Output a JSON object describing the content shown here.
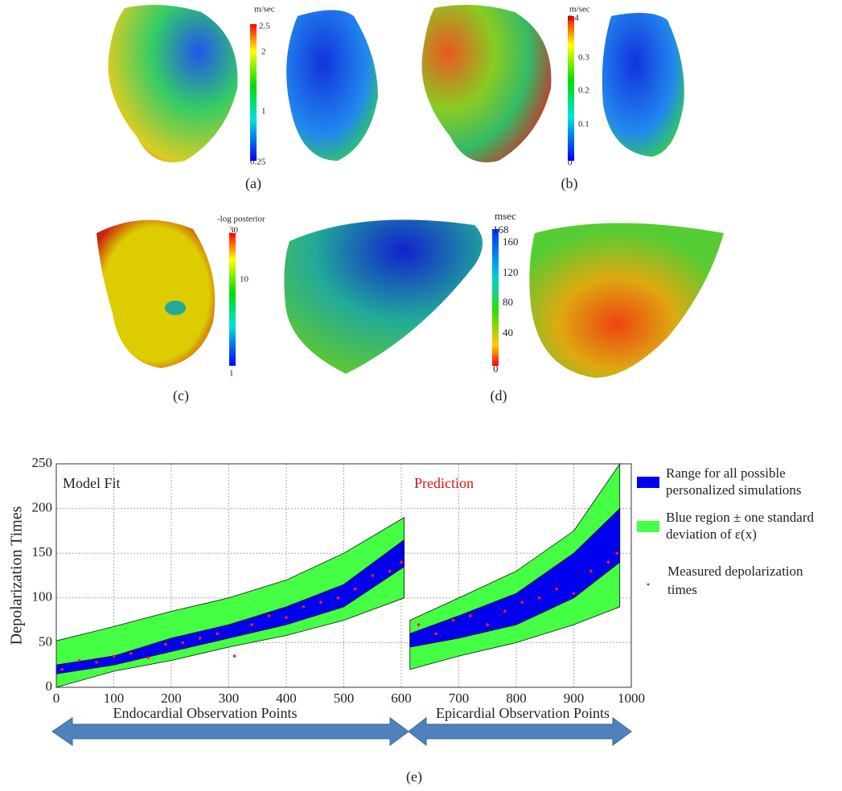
{
  "panels": {
    "a": {
      "label": "(a)",
      "unit": "m/sec",
      "ticks": [
        "2.5",
        "2",
        "1",
        "0.25"
      ]
    },
    "b": {
      "label": "(b)",
      "unit": "m/sec",
      "ticks": [
        "0.4",
        "0.3",
        "0.2",
        "0.1",
        "0"
      ]
    },
    "c": {
      "label": "(c)",
      "unit": "-log posterior",
      "ticks": [
        "30",
        "10",
        "1"
      ]
    },
    "d": {
      "label": "(d)",
      "unit": "msec",
      "ticks": [
        "168",
        "160",
        "120",
        "80",
        "40",
        "0"
      ]
    },
    "e": {
      "label": "(e)"
    }
  },
  "chart_data": {
    "type": "band",
    "ylabel": "Depolarization Times",
    "annotations": [
      "Model Fit",
      "Prediction"
    ],
    "segment_labels": [
      "Endocardial Observation Points",
      "Epicardial Observation Points"
    ],
    "xlim": [
      0,
      1000
    ],
    "ylim": [
      0,
      250
    ],
    "xticks": [
      0,
      100,
      200,
      300,
      400,
      500,
      600,
      700,
      800,
      900,
      1000
    ],
    "yticks": [
      0,
      50,
      100,
      150,
      200,
      250
    ],
    "grid": true,
    "x": [
      0,
      100,
      200,
      300,
      400,
      500,
      605,
      610,
      615,
      700,
      800,
      900,
      980
    ],
    "series": [
      {
        "name": "Blue region ± one standard deviation of ε(x)",
        "color": "#44ff44",
        "low": [
          0,
          18,
          30,
          45,
          58,
          75,
          100,
          null,
          20,
          35,
          50,
          70,
          90
        ],
        "high": [
          52,
          68,
          85,
          100,
          120,
          150,
          190,
          null,
          75,
          100,
          130,
          175,
          250
        ]
      },
      {
        "name": "Range for all possible personalized simulations",
        "color": "#0000ee",
        "low": [
          15,
          25,
          40,
          55,
          70,
          90,
          135,
          null,
          45,
          55,
          70,
          100,
          140
        ],
        "high": [
          25,
          35,
          55,
          70,
          90,
          115,
          165,
          null,
          60,
          80,
          105,
          150,
          200
        ]
      }
    ],
    "points": {
      "name": "Measured depolarization times",
      "color": "#ff2020",
      "x": [
        10,
        40,
        70,
        100,
        130,
        160,
        190,
        220,
        250,
        280,
        310,
        340,
        370,
        400,
        430,
        460,
        490,
        520,
        550,
        580,
        600,
        630,
        660,
        690,
        720,
        750,
        780,
        810,
        840,
        870,
        900,
        930,
        960,
        975
      ],
      "y": [
        20,
        30,
        28,
        35,
        38,
        33,
        48,
        50,
        55,
        60,
        35,
        70,
        80,
        78,
        90,
        95,
        100,
        110,
        125,
        130,
        140,
        70,
        60,
        75,
        80,
        70,
        85,
        95,
        100,
        110,
        105,
        130,
        140,
        150
      ]
    }
  }
}
